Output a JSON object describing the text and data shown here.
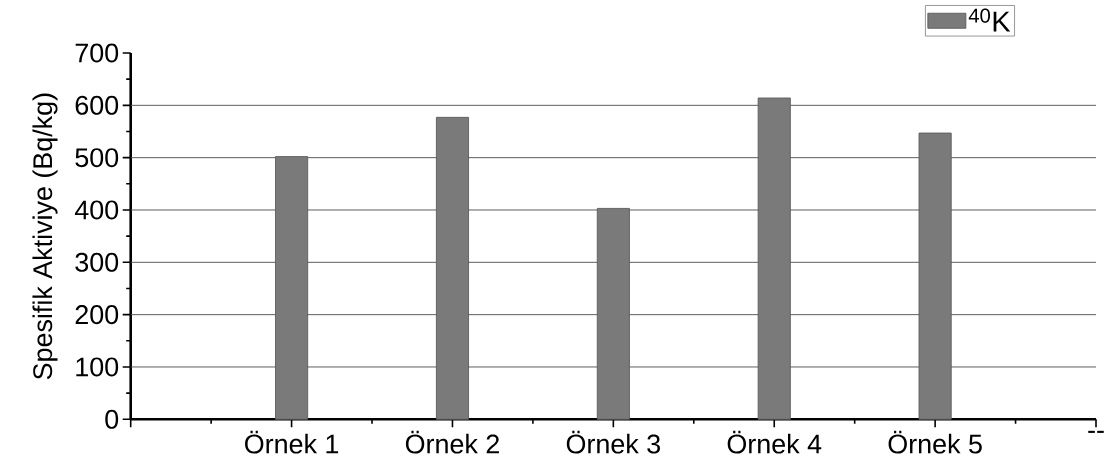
{
  "chart_data": {
    "type": "bar",
    "ylabel": "Spesifik Aktiviye (Bq/kg)",
    "categories": [
      null,
      "Örnek 1",
      "Örnek 2",
      "Örnek 3",
      "Örnek 4",
      "Örnek 5",
      "--"
    ],
    "series": [
      {
        "name": "$^{40}$K",
        "color": "#7a7a7a",
        "values": [
          null,
          502,
          577,
          403,
          614,
          547,
          null
        ]
      }
    ],
    "ylim": [
      0,
      700
    ],
    "yticks": [
      0,
      100,
      200,
      300,
      400,
      500,
      600,
      700
    ],
    "grid": "y",
    "legend": "top right"
  }
}
